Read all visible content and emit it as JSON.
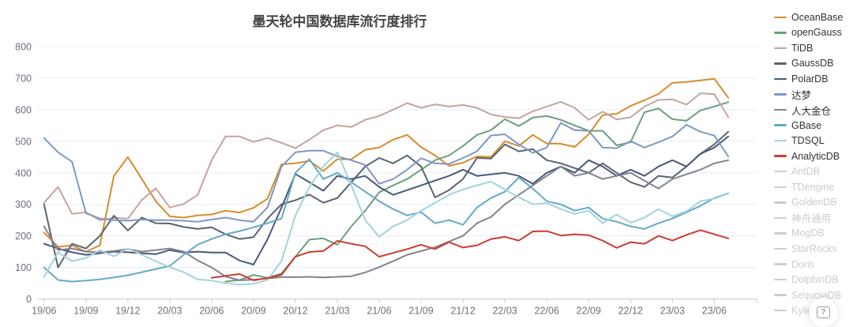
{
  "title": "墨天轮中国数据库流行度排行",
  "help_button": {
    "icon": "?"
  },
  "legend": {
    "position": "right",
    "items": [
      {
        "label": "OceanBase",
        "color": "#D78C2B",
        "active": true
      },
      {
        "label": "openGauss",
        "color": "#69A179",
        "active": true
      },
      {
        "label": "TiDB",
        "color": "#C4A49E",
        "active": true
      },
      {
        "label": "GaussDB",
        "color": "#586470",
        "active": true
      },
      {
        "label": "PolarDB",
        "color": "#49597A",
        "active": true
      },
      {
        "label": "达梦",
        "color": "#7E97C3",
        "active": true
      },
      {
        "label": "人大金仓",
        "color": "#82838D",
        "active": true
      },
      {
        "label": "GBase",
        "color": "#64AAC4",
        "active": true
      },
      {
        "label": "TDSQL",
        "color": "#A5D2DB",
        "active": true
      },
      {
        "label": "AnalyticDB",
        "color": "#CF3B32",
        "active": true
      },
      {
        "label": "AntDB",
        "color": "#cccccc",
        "active": false
      },
      {
        "label": "TDengine",
        "color": "#cccccc",
        "active": false
      },
      {
        "label": "GoldenDB",
        "color": "#cccccc",
        "active": false
      },
      {
        "label": "神舟通用",
        "color": "#cccccc",
        "active": false
      },
      {
        "label": "MogDB",
        "color": "#cccccc",
        "active": false
      },
      {
        "label": "StarRocks",
        "color": "#cccccc",
        "active": false
      },
      {
        "label": "Doris",
        "color": "#cccccc",
        "active": false
      },
      {
        "label": "DolphinDB",
        "color": "#cccccc",
        "active": false
      },
      {
        "label": "SequoiaDB",
        "color": "#cccccc",
        "active": false
      },
      {
        "label": "Kyligence",
        "color": "#cccccc",
        "active": false
      }
    ]
  },
  "chart_data": {
    "type": "line",
    "title": "墨天轮中国数据库流行度排行",
    "xlabel": "",
    "ylabel": "",
    "ylim": [
      0,
      800
    ],
    "y_ticks": [
      0,
      100,
      200,
      300,
      400,
      500,
      600,
      700,
      800
    ],
    "grid": true,
    "legend_position": "right",
    "x_tick_every": 3,
    "x": [
      "19/06",
      "19/07",
      "19/08",
      "19/09",
      "19/10",
      "19/11",
      "19/12",
      "20/01",
      "20/02",
      "20/03",
      "20/04",
      "20/05",
      "20/06",
      "20/07",
      "20/08",
      "20/09",
      "20/10",
      "20/11",
      "20/12",
      "21/01",
      "21/02",
      "21/03",
      "21/04",
      "21/05",
      "21/06",
      "21/07",
      "21/08",
      "21/09",
      "21/10",
      "21/11",
      "21/12",
      "22/01",
      "22/02",
      "22/03",
      "22/04",
      "22/05",
      "22/06",
      "22/07",
      "22/08",
      "22/09",
      "22/10",
      "22/11",
      "22/12",
      "23/01",
      "23/02",
      "23/03",
      "23/04",
      "23/05",
      "23/06",
      "23/07"
    ],
    "series": [
      {
        "name": "OceanBase",
        "color": "#D78C2B",
        "values": [
          210,
          165,
          170,
          150,
          170,
          390,
          450,
          380,
          310,
          262,
          258,
          265,
          268,
          280,
          274,
          289,
          318,
          427,
          430,
          438,
          406,
          443,
          443,
          473,
          480,
          505,
          520,
          481,
          455,
          422,
          432,
          452,
          450,
          500,
          485,
          520,
          493,
          492,
          482,
          522,
          583,
          587,
          612,
          630,
          650,
          685,
          688,
          693,
          698,
          638
        ]
      },
      {
        "name": "openGauss",
        "color": "#69A179",
        "values": [
          null,
          null,
          null,
          null,
          null,
          null,
          null,
          null,
          null,
          null,
          null,
          null,
          null,
          55,
          60,
          76,
          67,
          81,
          134,
          188,
          192,
          172,
          230,
          280,
          338,
          360,
          380,
          410,
          440,
          455,
          485,
          520,
          535,
          570,
          548,
          575,
          580,
          568,
          550,
          533,
          533,
          487,
          497,
          592,
          604,
          570,
          565,
          598,
          610,
          624
        ]
      },
      {
        "name": "TiDB",
        "color": "#C4A49E",
        "values": [
          305,
          355,
          270,
          275,
          250,
          257,
          255,
          314,
          351,
          290,
          301,
          330,
          440,
          515,
          515,
          498,
          510,
          495,
          478,
          505,
          535,
          550,
          545,
          568,
          580,
          600,
          621,
          606,
          617,
          610,
          615,
          606,
          585,
          577,
          573,
          595,
          610,
          625,
          606,
          568,
          594,
          569,
          576,
          610,
          631,
          633,
          616,
          652,
          649,
          577
        ]
      },
      {
        "name": "GaussDB",
        "color": "#586470",
        "values": [
          300,
          100,
          175,
          160,
          200,
          264,
          217,
          258,
          240,
          239,
          228,
          222,
          227,
          205,
          190,
          196,
          255,
          300,
          313,
          331,
          305,
          320,
          370,
          420,
          447,
          430,
          455,
          420,
          322,
          345,
          380,
          447,
          445,
          490,
          468,
          475,
          440,
          430,
          415,
          400,
          430,
          400,
          370,
          355,
          390,
          385,
          420,
          460,
          490,
          530
        ]
      },
      {
        "name": "PolarDB",
        "color": "#49597A",
        "values": [
          175,
          160,
          148,
          140,
          145,
          150,
          148,
          145,
          142,
          155,
          147,
          150,
          147,
          147,
          122,
          109,
          189,
          290,
          396,
          370,
          343,
          390,
          380,
          390,
          355,
          330,
          345,
          360,
          375,
          390,
          410,
          390,
          395,
          400,
          390,
          365,
          400,
          420,
          400,
          440,
          420,
          390,
          410,
          390,
          420,
          440,
          420,
          460,
          480,
          515
        ]
      },
      {
        "name": "达梦",
        "color": "#7E97C3",
        "values": [
          510,
          465,
          435,
          272,
          255,
          250,
          248,
          252,
          250,
          250,
          248,
          245,
          252,
          258,
          250,
          245,
          290,
          420,
          465,
          470,
          470,
          452,
          440,
          425,
          365,
          380,
          410,
          446,
          430,
          428,
          447,
          468,
          518,
          522,
          490,
          463,
          480,
          558,
          535,
          533,
          480,
          478,
          500,
          480,
          497,
          515,
          552,
          530,
          518,
          452
        ]
      },
      {
        "name": "人大金仓",
        "color": "#82838D",
        "values": [
          230,
          155,
          160,
          150,
          148,
          152,
          158,
          150,
          155,
          160,
          150,
          122,
          100,
          71,
          59,
          61,
          65,
          69,
          69,
          70,
          68,
          70,
          72,
          84,
          101,
          120,
          140,
          152,
          164,
          182,
          200,
          240,
          260,
          300,
          330,
          360,
          390,
          420,
          390,
          400,
          380,
          390,
          400,
          375,
          350,
          380,
          395,
          410,
          430,
          440
        ]
      },
      {
        "name": "GBase",
        "color": "#64AAC4",
        "values": [
          100,
          60,
          55,
          58,
          62,
          68,
          75,
          85,
          95,
          105,
          140,
          172,
          190,
          205,
          215,
          227,
          240,
          255,
          400,
          443,
          380,
          400,
          370,
          340,
          310,
          285,
          265,
          275,
          240,
          250,
          235,
          290,
          320,
          340,
          385,
          350,
          310,
          300,
          280,
          290,
          255,
          245,
          230,
          222,
          240,
          255,
          275,
          295,
          320,
          335
        ]
      },
      {
        "name": "TDSQL",
        "color": "#A5D2DB",
        "values": [
          70,
          148,
          120,
          130,
          155,
          135,
          160,
          140,
          120,
          101,
          85,
          62,
          58,
          50,
          45,
          48,
          60,
          120,
          264,
          355,
          420,
          465,
          360,
          250,
          197,
          230,
          250,
          280,
          305,
          330,
          347,
          360,
          372,
          347,
          322,
          300,
          304,
          285,
          270,
          280,
          240,
          268,
          242,
          258,
          285,
          262,
          278,
          310,
          318,
          334
        ]
      },
      {
        "name": "AnalyticDB",
        "color": "#CF3B32",
        "values": [
          null,
          null,
          null,
          null,
          null,
          null,
          null,
          null,
          null,
          null,
          null,
          null,
          67,
          73,
          79,
          59,
          66,
          76,
          134,
          149,
          152,
          184,
          175,
          167,
          134,
          146,
          158,
          172,
          158,
          180,
          163,
          170,
          190,
          197,
          185,
          214,
          215,
          201,
          205,
          202,
          185,
          162,
          180,
          175,
          200,
          185,
          203,
          218,
          205,
          192
        ]
      }
    ]
  },
  "axis_style": {
    "label_color": "#6E7079",
    "axis_line_color": "#C7C9CD",
    "grid_line_color": "#E6EDF6"
  }
}
